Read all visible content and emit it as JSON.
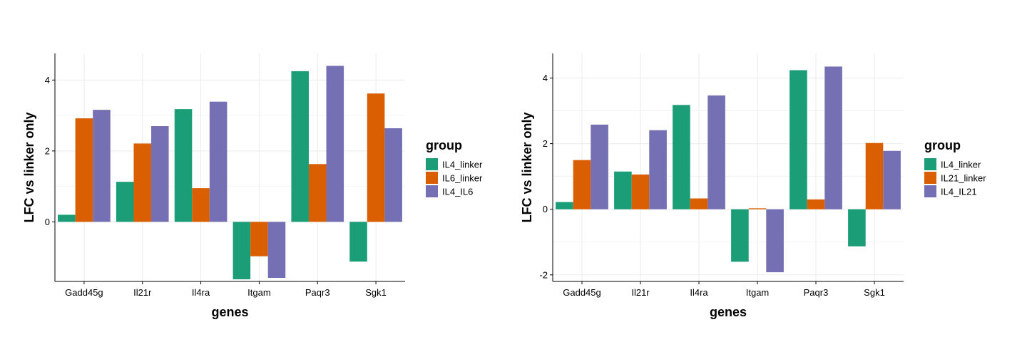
{
  "colors": {
    "IL4_linker": "#1b9e77",
    "IL6_linker": "#d95f02",
    "IL4_IL6": "#7570b3",
    "IL21_linker": "#d95f02",
    "IL4_IL21": "#7570b3",
    "grid": "#ebebeb",
    "axis": "#000000"
  },
  "chart_data": [
    {
      "type": "bar",
      "xlabel": "genes",
      "ylabel": "LFC vs linker only",
      "categories": [
        "Gadd45g",
        "Il21r",
        "Il4ra",
        "Itgam",
        "Paqr3",
        "Sgk1"
      ],
      "yticks": [
        0,
        2,
        4
      ],
      "ytick_labels": [
        "0",
        "2",
        "4"
      ],
      "ylim": [
        -1.68,
        4.75
      ],
      "grid": true,
      "legend_title": "group",
      "legend_position": "right",
      "series": [
        {
          "name": "IL4_linker",
          "color": "#1b9e77",
          "values": [
            0.2,
            1.13,
            3.18,
            -1.62,
            4.25,
            -1.12
          ]
        },
        {
          "name": "IL6_linker",
          "color": "#d95f02",
          "values": [
            2.92,
            2.21,
            0.95,
            -0.97,
            1.63,
            3.62
          ]
        },
        {
          "name": "IL4_IL6",
          "color": "#7570b3",
          "values": [
            3.16,
            2.7,
            3.39,
            -1.58,
            4.4,
            2.64
          ]
        }
      ]
    },
    {
      "type": "bar",
      "xlabel": "genes",
      "ylabel": "LFC vs linker only",
      "categories": [
        "Gadd45g",
        "Il21r",
        "Il4ra",
        "Itgam",
        "Paqr3",
        "Sgk1"
      ],
      "yticks": [
        -2,
        0,
        2,
        4
      ],
      "ytick_labels": [
        "-2",
        "0",
        "2",
        "4"
      ],
      "ylim": [
        -2.2,
        4.75
      ],
      "grid": true,
      "legend_title": "group",
      "legend_position": "right",
      "series": [
        {
          "name": "IL4_linker",
          "color": "#1b9e77",
          "values": [
            0.22,
            1.15,
            3.18,
            -1.6,
            4.24,
            -1.13
          ]
        },
        {
          "name": "IL21_linker",
          "color": "#d95f02",
          "values": [
            1.5,
            1.06,
            0.33,
            0.03,
            0.3,
            2.02
          ]
        },
        {
          "name": "IL4_IL21",
          "color": "#7570b3",
          "values": [
            2.58,
            2.41,
            3.47,
            -1.92,
            4.35,
            1.78
          ]
        }
      ]
    }
  ]
}
